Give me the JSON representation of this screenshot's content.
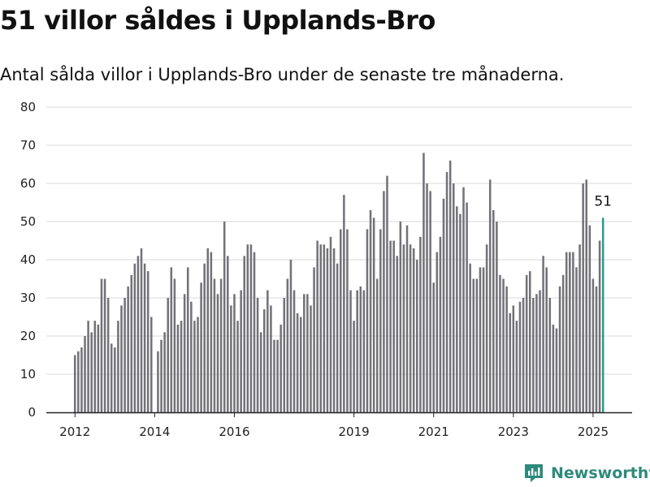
{
  "title": "51 villor såldes i Upplands-Bro",
  "subtitle": "Antal sålda villor i Upplands-Bro under de senaste tre månaderna.",
  "brand": "Newsworthy",
  "colors": {
    "bar": "#737278",
    "highlight": "#2b9a8c",
    "grid": "#d9d9d9",
    "brand": "#2e8a7c"
  },
  "chart_data": {
    "type": "bar",
    "title": "51 villor såldes i Upplands-Bro",
    "subtitle": "Antal sålda villor i Upplands-Bro under de senaste tre månaderna.",
    "xlabel": "",
    "ylabel": "",
    "ylim": [
      0,
      80
    ],
    "yticks": [
      0,
      10,
      20,
      30,
      40,
      50,
      60,
      70,
      80
    ],
    "xtick_labels": [
      "2012",
      "2014",
      "2016",
      "2019",
      "2021",
      "2023",
      "2025"
    ],
    "grid": true,
    "start_month": "2012-01",
    "frequency": "monthly",
    "highlight_label": "51",
    "values": [
      15,
      16,
      17,
      20,
      24,
      21,
      24,
      23,
      35,
      35,
      30,
      18,
      17,
      24,
      28,
      30,
      33,
      36,
      39,
      41,
      43,
      39,
      37,
      25,
      0,
      16,
      19,
      21,
      30,
      38,
      35,
      23,
      24,
      31,
      38,
      29,
      24,
      25,
      34,
      39,
      43,
      42,
      35,
      31,
      35,
      50,
      41,
      28,
      31,
      24,
      32,
      41,
      44,
      44,
      42,
      30,
      21,
      27,
      32,
      28,
      19,
      19,
      23,
      30,
      35,
      40,
      32,
      26,
      25,
      31,
      31,
      28,
      38,
      45,
      44,
      44,
      43,
      46,
      43,
      39,
      48,
      57,
      48,
      32,
      24,
      32,
      33,
      32,
      48,
      53,
      51,
      35,
      48,
      58,
      62,
      45,
      45,
      41,
      50,
      44,
      49,
      44,
      43,
      40,
      46,
      68,
      60,
      58,
      34,
      42,
      46,
      56,
      63,
      66,
      60,
      54,
      52,
      59,
      55,
      39,
      35,
      35,
      38,
      38,
      44,
      61,
      53,
      50,
      36,
      35,
      33,
      26,
      28,
      24,
      29,
      30,
      36,
      37,
      30,
      31,
      32,
      41,
      38,
      30,
      23,
      22,
      33,
      36,
      42,
      42,
      42,
      38,
      44,
      60,
      61,
      49,
      35,
      33,
      45,
      51
    ]
  }
}
